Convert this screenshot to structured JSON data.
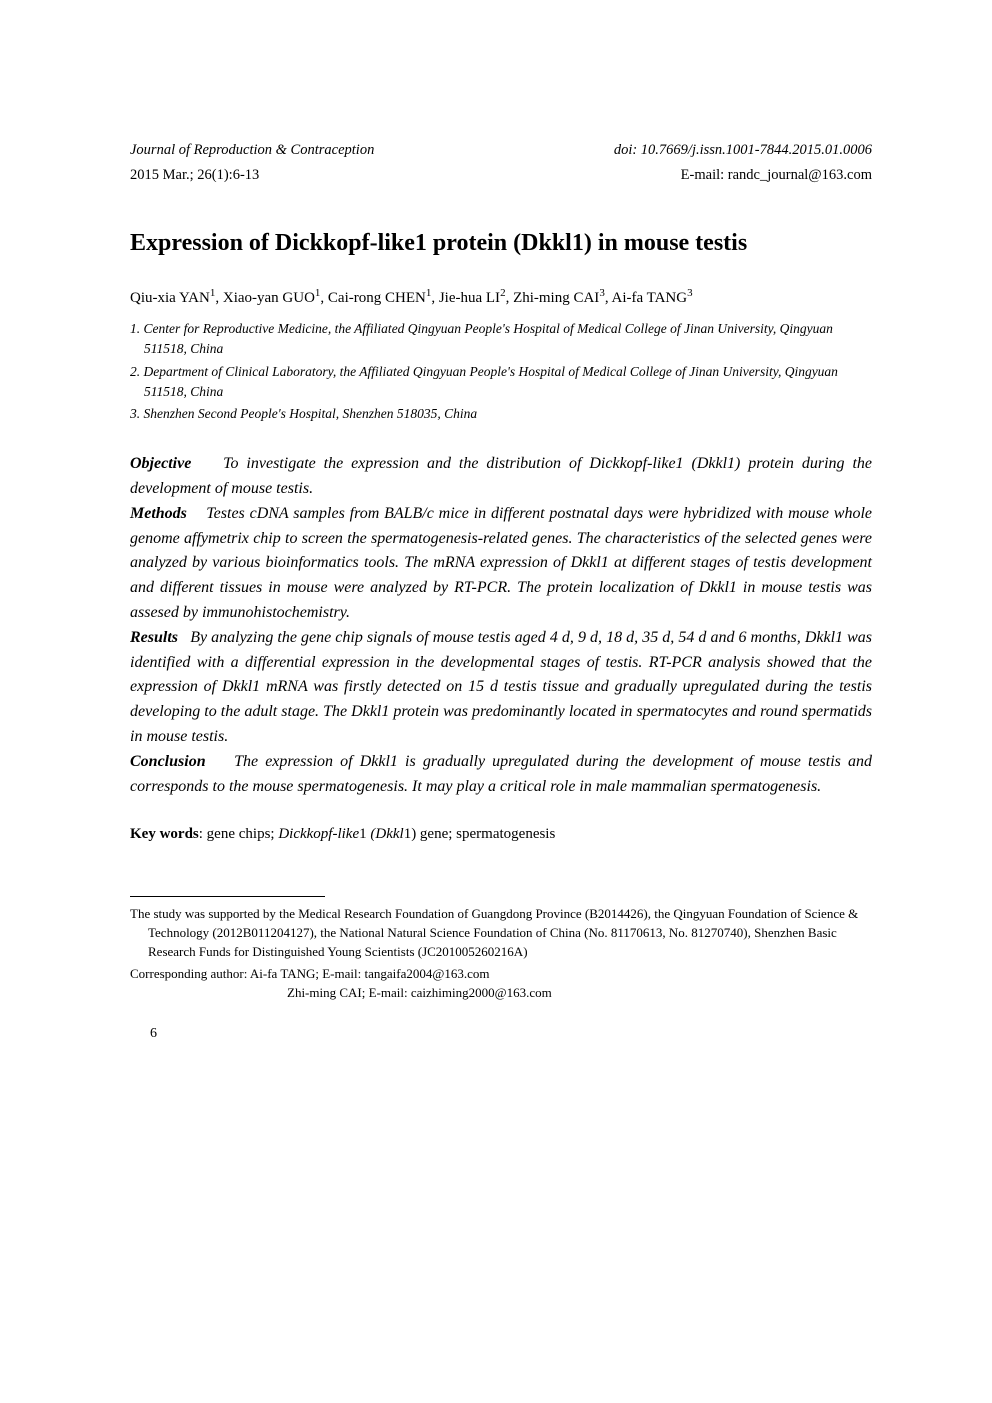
{
  "header": {
    "journal": "Journal of Reproduction & Contraception",
    "issue": "2015 Mar.; 26(1):6-13",
    "doi": "doi: 10.7669/j.issn.1001-7844.2015.01.0006",
    "email": "E-mail: randc_journal@163.com"
  },
  "title": "Expression of Dickkopf-like1 protein (Dkkl1) in mouse testis",
  "authors": {
    "a1_name": "Qiu-xia YAN",
    "a1_sup": "1",
    "a2_name": "Xiao-yan GUO",
    "a2_sup": "1",
    "a3_name": "Cai-rong CHEN",
    "a3_sup": "1",
    "a4_name": "Jie-hua LI",
    "a4_sup": "2",
    "a5_name": "Zhi-ming CAI",
    "a5_sup": "3",
    "a6_name": "Ai-fa TANG",
    "a6_sup": "3"
  },
  "affiliations": {
    "af1": "1. Center for Reproductive Medicine, the Affiliated Qingyuan People's Hospital of Medical College of Jinan University, Qingyuan 511518, China",
    "af2": "2. Department of Clinical Laboratory, the Affiliated Qingyuan People's Hospital of Medical College of Jinan University, Qingyuan 511518, China",
    "af3": "3. Shenzhen Second People's Hospital, Shenzhen 518035, China"
  },
  "abstract": {
    "objective_label": "Objective",
    "objective_text": "To investigate the expression and the distribution of Dickkopf-like1 (Dkkl1) protein during the development of mouse testis.",
    "methods_label": "Methods",
    "methods_text": "Testes cDNA samples from BALB/c mice in different postnatal days were hybridized with mouse whole genome affymetrix chip to screen the spermatogenesis-related genes. The characteristics of the selected genes were analyzed by various bioinformatics tools. The mRNA expression of Dkkl1 at different stages of testis development and different tissues in mouse were analyzed by RT-PCR. The protein localization of Dkkl1 in mouse testis was assesed by immunohistochemistry.",
    "results_label": "Results",
    "results_text": "By analyzing the gene chip signals of mouse testis aged 4 d, 9 d, 18 d, 35 d, 54 d and 6 months, Dkkl1 was identified with a differential expression in the developmental stages of testis. RT-PCR analysis showed that the expression of Dkkl1 mRNA was firstly detected on 15 d testis tissue and gradually upregulated during the testis developing to the adult stage. The Dkkl1 protein was predominantly located in spermatocytes and round spermatids in mouse testis.",
    "conclusion_label": "Conclusion",
    "conclusion_text": "The expression of Dkkl1 is gradually upregulated during the development of mouse testis and corresponds to the mouse spermatogenesis. It may play a critical role in male mammalian spermatogenesis."
  },
  "keywords": {
    "label": "Key words",
    "k1": "gene chips;",
    "k2_italic": "Dickkopf-like",
    "k2_plain": "1",
    "k3_italic": "(Dkkl",
    "k3_plain": "1) gene;",
    "k4": "spermatogenesis"
  },
  "footnotes": {
    "funding": "The study was supported by the Medical Research Foundation of Guangdong Province (B2014426), the Qingyuan Foundation of Science & Technology (2012B011204127), the National Natural Science Foundation of China (No. 81170613, No. 81270740), Shenzhen Basic Research Funds for Distinguished Young Scientists (JC201005260216A)",
    "corresponding1": "Corresponding author: Ai-fa TANG; E-mail: tangaifa2004@163.com",
    "corresponding2": "Zhi-ming CAI; E-mail: caizhiming2000@163.com"
  },
  "page_number": "6",
  "style": {
    "text_color": "#000000",
    "bg_color": "#ffffff",
    "title_fontsize": 24,
    "body_fontsize": 15,
    "abstract_fontsize": 16,
    "footnote_fontsize": 13,
    "divider_width": 195,
    "divider_color": "#000000"
  }
}
